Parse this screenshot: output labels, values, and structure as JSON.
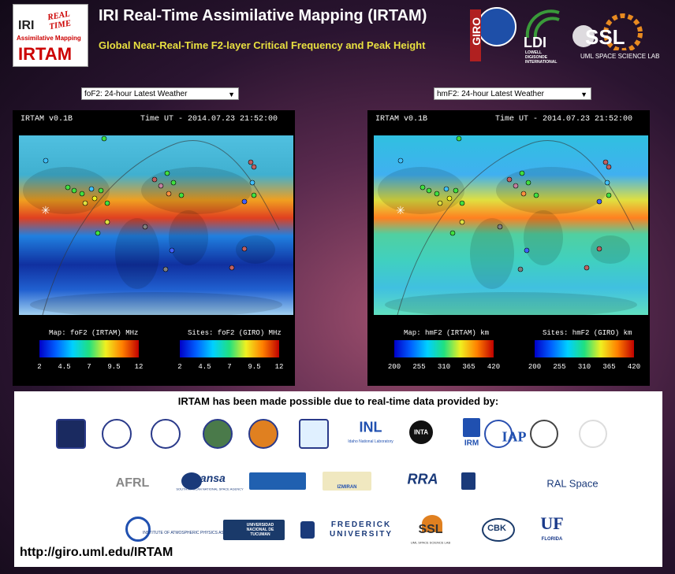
{
  "header": {
    "logo": {
      "top": "REAL TIME",
      "iri": "IRI",
      "sub": "Assimilative Mapping",
      "name": "IRTAM"
    },
    "title": "IRI Real-Time Assimilative Mapping (IRTAM)",
    "subtitle": "Global Near-Real-Time F2-layer Critical Frequency and Peak Height",
    "partners": {
      "giro": "GIRO",
      "ldi": "LDI",
      "ldi_sub": "LOWELL DIGISONDE INTERNATIONAL",
      "ssl": "SSL",
      "ssl_sub": "UML SPACE SCIENCE LAB"
    }
  },
  "panels": [
    {
      "selector": "foF2: 24-hour Latest Weather",
      "version": "IRTAM v0.1B",
      "time": "Time UT - 2014.07.23 21:52:00",
      "map_label": "Map: foF2 (IRTAM) MHz",
      "sites_label": "Sites: foF2 (GIRO) MHz",
      "ticks": [
        2,
        4.5,
        7,
        9.5,
        12
      ]
    },
    {
      "selector": "hmF2: 24-hour Latest Weather",
      "version": "IRTAM v0.1B",
      "time": "Time UT - 2014.07.23 21:52:00",
      "map_label": "Map: hmF2 (IRTAM) km",
      "sites_label": "Sites: hmF2 (GIRO) km",
      "ticks": [
        200,
        255,
        310,
        365,
        420
      ]
    }
  ],
  "providers": {
    "heading": "IRTAM has been made possible due to real-time data provided by:",
    "logos": [
      "INL",
      "Idaho National Laboratory",
      "INTA",
      "IRM",
      "IAP",
      "AFRL",
      "sansa",
      "SOUTH AFRICAN NATIONAL SPACE AGENCY",
      "IZMIRAN",
      "RRA",
      "RAL Space",
      "INSTITUTE OF ATMOSPHERIC PHYSICS ASCR",
      "UNIVERSIDAD NACIONAL DE TUCUMAN",
      "FREDERICK UNIVERSITY",
      "SSL",
      "UML SPACE SCIENCE LAB",
      "CBK",
      "UF",
      "FLORIDA"
    ]
  },
  "url": "http://giro.uml.edu/IRTAM"
}
